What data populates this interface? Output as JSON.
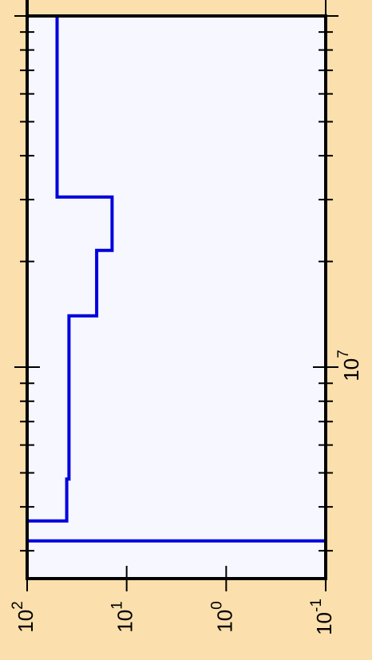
{
  "chart_data": {
    "type": "line",
    "orientation": "rotated-90",
    "title": "",
    "xlabel": "",
    "ylabel": "",
    "x_scale": "log",
    "y_scale": "log",
    "x_axis_position": "right",
    "y_axis_position": "bottom",
    "grid": false,
    "legend": "none",
    "xlim": [
      2500000,
      100000000
    ],
    "ylim": [
      0.1,
      100
    ],
    "x_ticks": [
      {
        "value": 10000000,
        "base": "10",
        "exp": "7"
      }
    ],
    "y_ticks": [
      {
        "value": 100,
        "base": "10",
        "exp": "2"
      },
      {
        "value": 10,
        "base": "10",
        "exp": "1"
      },
      {
        "value": 1,
        "base": "10",
        "exp": "0"
      },
      {
        "value": 0.1,
        "base": "10",
        "exp": "-1"
      }
    ],
    "series": [
      {
        "color": "#0000dd",
        "style": "step",
        "points": [
          [
            3200000,
            0.1
          ],
          [
            3200000,
            100
          ],
          [
            3650000,
            100
          ],
          [
            3650000,
            40
          ],
          [
            4800000,
            40
          ],
          [
            4800000,
            38
          ],
          [
            14000000,
            38
          ],
          [
            14000000,
            20
          ],
          [
            21500000,
            20
          ],
          [
            21500000,
            14
          ],
          [
            30500000,
            14
          ],
          [
            30500000,
            50
          ],
          [
            100000000,
            50
          ]
        ]
      }
    ],
    "colors": {
      "background": "#fbdfac",
      "plot_area": "#f7f7ff",
      "axis": "#000000",
      "series": "#0000dd"
    }
  }
}
